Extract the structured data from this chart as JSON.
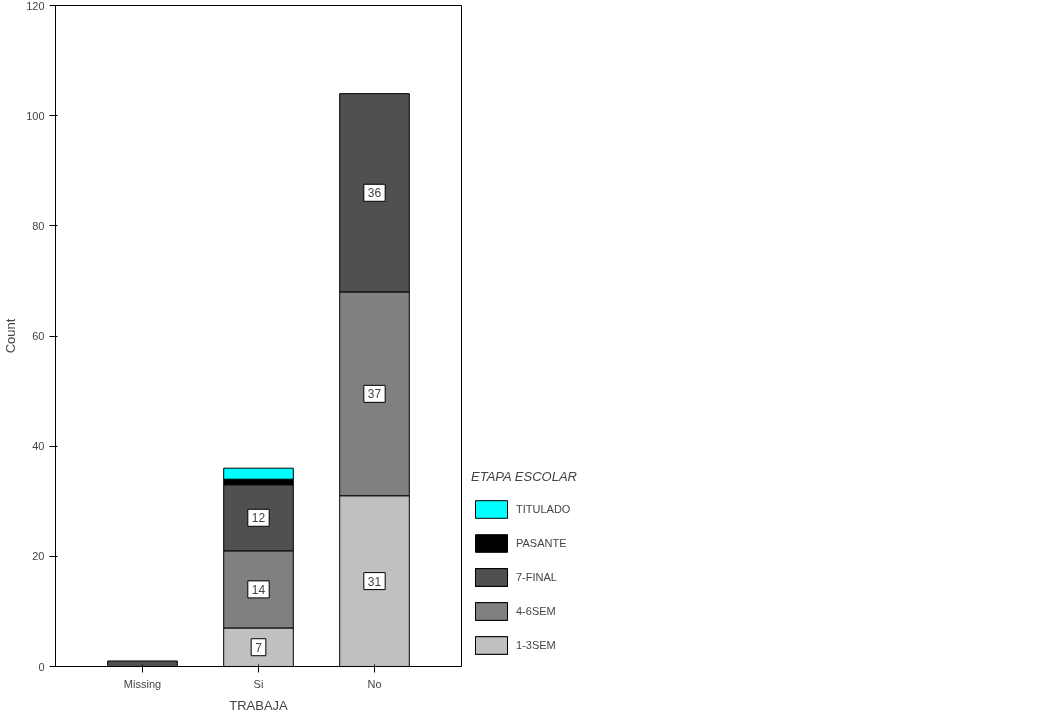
{
  "chart_data": {
    "type": "bar",
    "stacked": true,
    "xlabel": "TRABAJA",
    "ylabel": "Count",
    "legend_title": "ETAPA ESCOLAR",
    "categories": [
      "Missing",
      "Si",
      "No"
    ],
    "series": [
      {
        "name": "1-3SEM",
        "color": "#c0c0c0",
        "values": [
          null,
          7,
          31
        ],
        "value_labels": [
          null,
          "7",
          "31"
        ]
      },
      {
        "name": "4-6SEM",
        "color": "#808080",
        "values": [
          null,
          14,
          37
        ],
        "value_labels": [
          null,
          "14",
          "37"
        ]
      },
      {
        "name": "7-FINAL",
        "color": "#505050",
        "values": [
          1,
          12,
          36
        ],
        "value_labels": [
          null,
          "12",
          "36"
        ]
      },
      {
        "name": "PASANTE",
        "color": "#000000",
        "values": [
          null,
          1,
          null
        ],
        "value_labels": [
          null,
          null,
          null
        ]
      },
      {
        "name": "TITULADO",
        "color": "#00ffff",
        "values": [
          null,
          2,
          null
        ],
        "value_labels": [
          null,
          null,
          null
        ]
      }
    ],
    "ylim": [
      0,
      120
    ],
    "yticks": [
      0,
      20,
      40,
      60,
      80,
      100,
      120
    ],
    "grid": false,
    "legend": "right"
  }
}
